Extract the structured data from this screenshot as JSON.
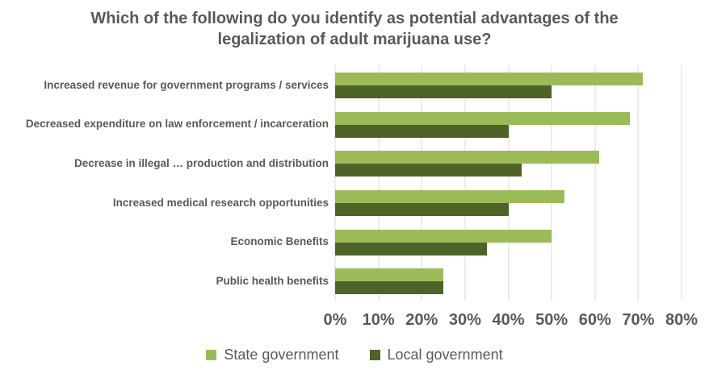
{
  "chart_data": {
    "type": "bar",
    "orientation": "horizontal",
    "title": "Which of the following do you identify as potential advantages of the legalization of adult marijuana use?",
    "title_lines": [
      "Which of the following do you identify as potential advantages of the",
      "legalization of adult marijuana use?"
    ],
    "categories": [
      "Increased revenue for government programs / services",
      "Decreased expenditure on law enforcement / incarceration",
      "Decrease in illegal …  production and distribution",
      "Increased medical research opportunities",
      "Economic Benefits",
      "Public health benefits"
    ],
    "series": [
      {
        "name": "State government",
        "color": "#9BBB59",
        "values": [
          71,
          68,
          61,
          53,
          50,
          25
        ]
      },
      {
        "name": "Local government",
        "color": "#4F6228",
        "values": [
          50,
          40,
          43,
          40,
          35,
          25
        ]
      }
    ],
    "xlim": [
      0,
      80
    ],
    "x_tick_values": [
      0,
      10,
      20,
      30,
      40,
      50,
      60,
      70,
      80
    ],
    "x_tick_labels": [
      "0%",
      "10%",
      "20%",
      "30%",
      "40%",
      "50%",
      "60%",
      "70%",
      "80%"
    ],
    "grid": true,
    "legend_position": "bottom",
    "colors": {
      "text": "#595959",
      "gridline": "#D9D9D9",
      "background": "#FFFFFF"
    }
  }
}
